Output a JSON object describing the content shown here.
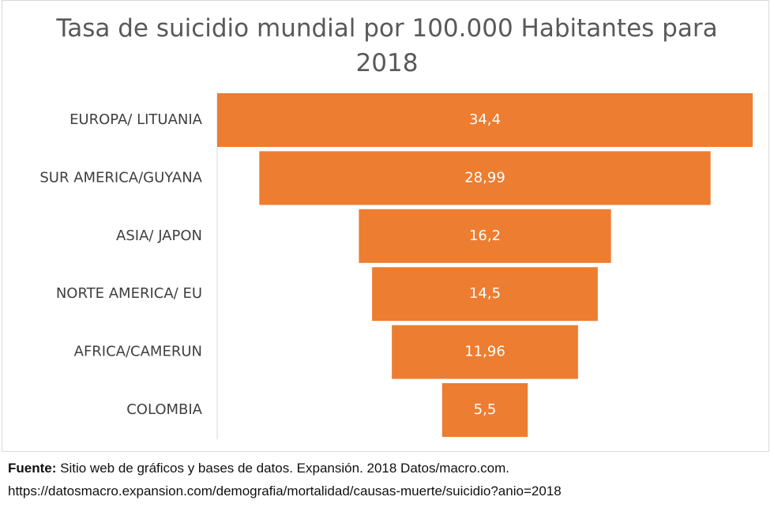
{
  "chart_data": {
    "type": "funnel",
    "title": "Tasa de suicidio mundial por 100.000 Habitantes para 2018",
    "categories": [
      "EUROPA/ LITUANIA",
      "SUR AMERICA/GUYANA",
      "ASIA/ JAPON",
      "NORTE AMERICA/ EU",
      "AFRICA/CAMERUN",
      "COLOMBIA"
    ],
    "values": [
      34.4,
      28.99,
      16.2,
      14.5,
      11.96,
      5.5
    ],
    "value_labels": [
      "34,4",
      "28,99",
      "16,2",
      "14,5",
      "11,96",
      "5,5"
    ],
    "color": "#ed7d31"
  },
  "source": {
    "label": "Fuente:",
    "text": "Sitio web de gráficos y bases de datos. Expansión. 2018 Datos/macro.com.",
    "url": "https://datosmacro.expansion.com/demografia/mortalidad/causas-muerte/suicidio?anio=2018"
  }
}
